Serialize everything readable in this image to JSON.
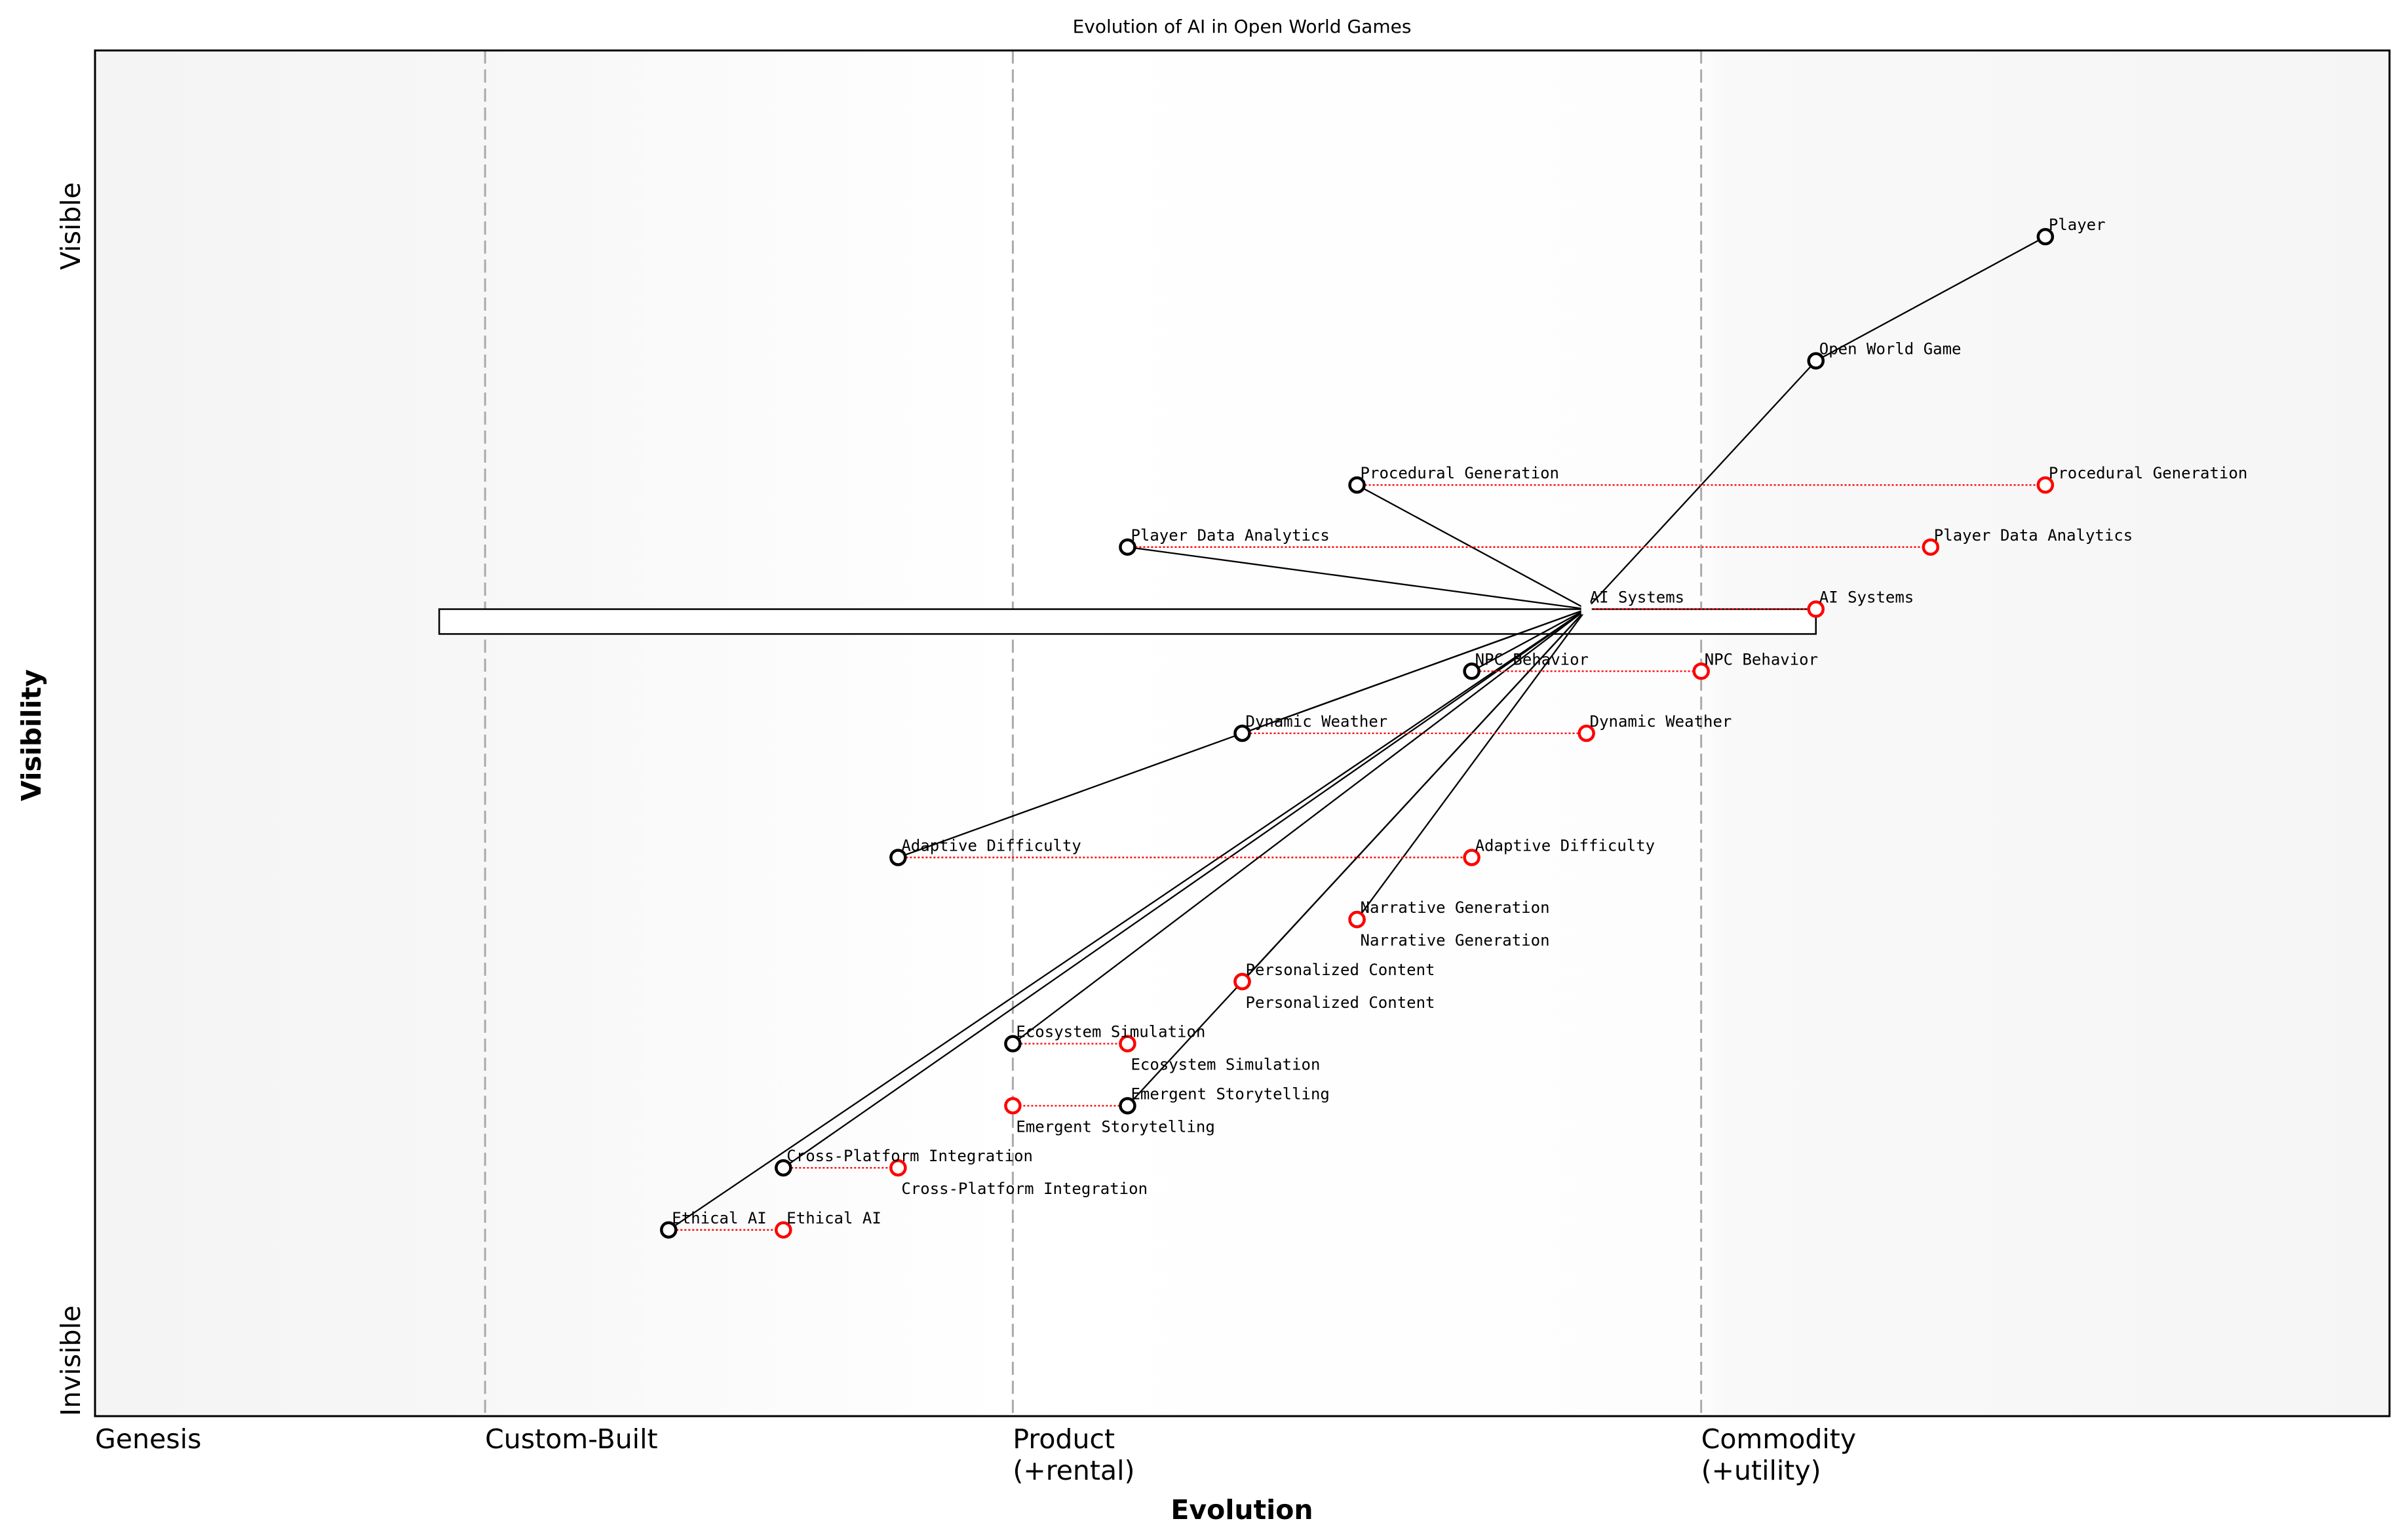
{
  "chart_data": {
    "type": "scatter",
    "subtype": "wardley-map",
    "title": "Evolution of AI in Open World Games",
    "xlabel": "Evolution",
    "ylabel": "Visibility",
    "xlim": [
      0,
      1
    ],
    "ylim": [
      -0.05,
      1.05
    ],
    "grid": false,
    "x_stages": [
      {
        "label": "Genesis",
        "x": 0
      },
      {
        "label": "Custom-Built",
        "x": 0.17
      },
      {
        "label": "Product\n(+rental)",
        "x": 0.4
      },
      {
        "label": "Commodity\n(+utility)",
        "x": 0.7
      }
    ],
    "y_labels": {
      "top": "Visible",
      "bottom": "Invisible"
    },
    "colors": {
      "node": "#000000",
      "evolved": "#ff0000",
      "stage_line": "#aaaaaa",
      "link": "#000000"
    },
    "components": [
      {
        "name": "Player",
        "evolution": 0.85,
        "visibility": 0.9
      },
      {
        "name": "Open World Game",
        "evolution": 0.75,
        "visibility": 0.8
      },
      {
        "name": "Procedural Generation",
        "evolution": 0.55,
        "visibility": 0.7,
        "evolve_to": 0.85
      },
      {
        "name": "Player Data Analytics",
        "evolution": 0.45,
        "visibility": 0.65,
        "evolve_to": 0.8
      },
      {
        "name": "AI Systems",
        "evolution": 0.65,
        "visibility": 0.6,
        "evolve_to": 0.75,
        "hidden_marker": true
      },
      {
        "name": "NPC Behavior",
        "evolution": 0.6,
        "visibility": 0.55,
        "evolve_to": 0.7
      },
      {
        "name": "Dynamic Weather",
        "evolution": 0.5,
        "visibility": 0.5,
        "evolve_to": 0.65
      },
      {
        "name": "Adaptive Difficulty",
        "evolution": 0.35,
        "visibility": 0.4,
        "evolve_to": 0.6
      },
      {
        "name": "Narrative Generation",
        "evolution": 0.55,
        "visibility": 0.35,
        "evolve_to": 0.55
      },
      {
        "name": "Personalized Content",
        "evolution": 0.5,
        "visibility": 0.3,
        "evolve_to": 0.5
      },
      {
        "name": "Ecosystem Simulation",
        "evolution": 0.4,
        "visibility": 0.25,
        "evolve_to": 0.45
      },
      {
        "name": "Emergent Storytelling",
        "evolution": 0.45,
        "visibility": 0.2,
        "evolve_to": 0.4
      },
      {
        "name": "Cross-Platform Integration",
        "evolution": 0.3,
        "visibility": 0.15,
        "evolve_to": 0.35
      },
      {
        "name": "Ethical AI",
        "evolution": 0.25,
        "visibility": 0.1,
        "evolve_to": 0.3
      }
    ],
    "links": [
      [
        "Player",
        "Open World Game"
      ],
      [
        "Open World Game",
        "AI Systems"
      ],
      [
        "AI Systems",
        "Procedural Generation"
      ],
      [
        "AI Systems",
        "Player Data Analytics"
      ],
      [
        "AI Systems",
        "NPC Behavior"
      ],
      [
        "AI Systems",
        "Dynamic Weather"
      ],
      [
        "AI Systems",
        "Adaptive Difficulty"
      ],
      [
        "AI Systems",
        "Narrative Generation"
      ],
      [
        "AI Systems",
        "Personalized Content"
      ],
      [
        "AI Systems",
        "Ecosystem Simulation"
      ],
      [
        "AI Systems",
        "Emergent Storytelling"
      ],
      [
        "AI Systems",
        "Cross-Platform Integration"
      ],
      [
        "AI Systems",
        "Ethical AI"
      ]
    ],
    "pipeline": {
      "component": "AI Systems",
      "x_start": 0.15,
      "x_end": 0.75
    }
  }
}
